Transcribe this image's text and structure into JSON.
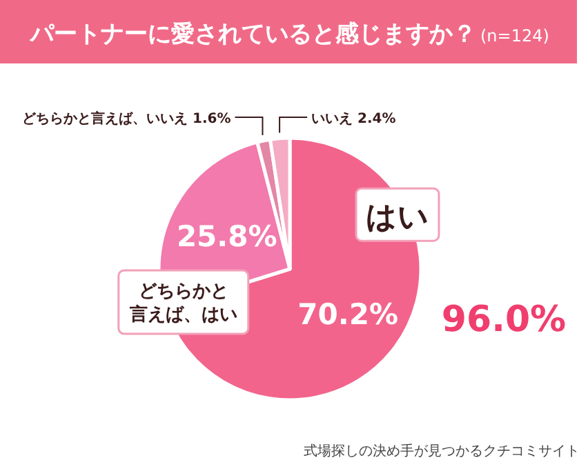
{
  "chart_data": {
    "type": "pie",
    "title": "パートナーに愛されていると感じますか？",
    "subtitle": "(n=124)",
    "categories": [
      "はい",
      "どちらかと言えば、はい",
      "どちらかと言えば、いいえ",
      "いいえ"
    ],
    "values": [
      70.2,
      25.8,
      1.6,
      2.4
    ],
    "colors": [
      "#f2648c",
      "#f27aac",
      "#e486a6",
      "#f5abc4"
    ],
    "value_labels": [
      "70.2%",
      "25.8%",
      "1.6%",
      "2.4%"
    ],
    "annotations": [
      {
        "text": "96.0%"
      },
      "式場探しの決め手が見つかるクチコミサイト"
    ]
  }
}
